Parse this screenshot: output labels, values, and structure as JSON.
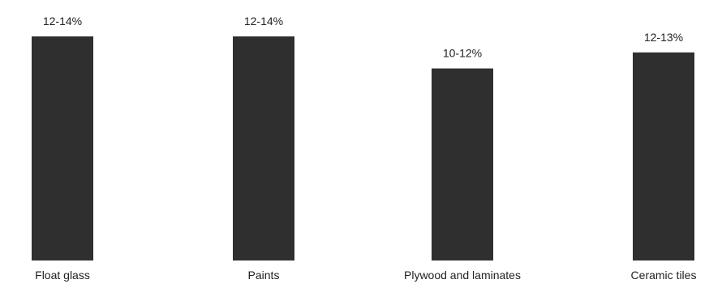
{
  "chart_data": {
    "type": "bar",
    "categories": [
      "Float glass",
      "Paints",
      "Plywood and laminates",
      "Ceramic tiles"
    ],
    "values": [
      14,
      14,
      12,
      13
    ],
    "data_labels": [
      "12-14%",
      "12-14%",
      "10-12%",
      "12-13%"
    ],
    "title": "",
    "xlabel": "",
    "ylabel": "",
    "ylim": [
      0,
      14
    ],
    "grid": false,
    "legend": "none",
    "bar_color": "#2f2f2f"
  }
}
